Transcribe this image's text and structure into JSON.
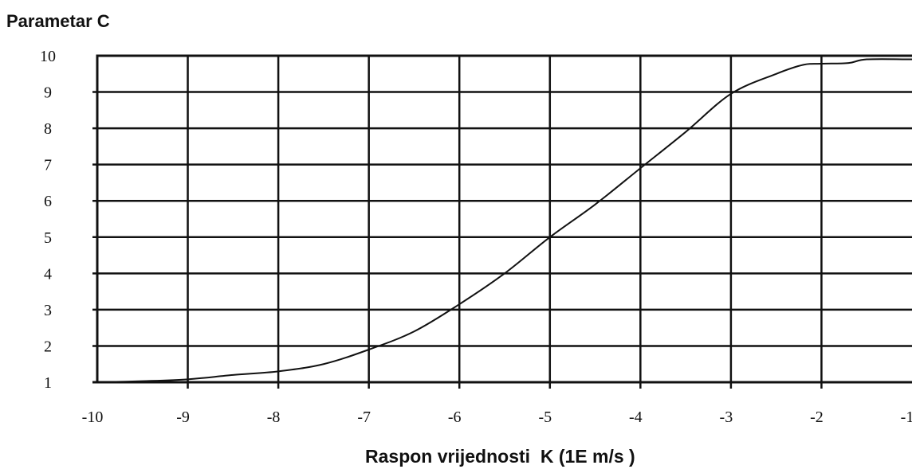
{
  "chart_data": {
    "type": "line",
    "ylabel": "Parametar C",
    "xlabel": "Raspon vrijednosti  K (1E m/s )",
    "xlim": [
      -10,
      -1
    ],
    "ylim": [
      1,
      10
    ],
    "x_ticks": [
      -10,
      -9,
      -8,
      -7,
      -6,
      -5,
      -4,
      -3,
      -2,
      -1
    ],
    "y_ticks": [
      1,
      2,
      3,
      4,
      5,
      6,
      7,
      8,
      9,
      10
    ],
    "grid": true,
    "series": [
      {
        "color": "#111111",
        "points": [
          [
            -10,
            1.0
          ],
          [
            -9.5,
            1.03
          ],
          [
            -9,
            1.08
          ],
          [
            -8.5,
            1.2
          ],
          [
            -8,
            1.3
          ],
          [
            -7.5,
            1.5
          ],
          [
            -7,
            1.9
          ],
          [
            -6.5,
            2.4
          ],
          [
            -6,
            3.15
          ],
          [
            -5.5,
            4.0
          ],
          [
            -5,
            5.0
          ],
          [
            -4.5,
            5.9
          ],
          [
            -4,
            6.9
          ],
          [
            -3.5,
            7.9
          ],
          [
            -3,
            8.95
          ],
          [
            -2.5,
            9.5
          ],
          [
            -2.2,
            9.75
          ],
          [
            -2,
            9.78
          ],
          [
            -1.7,
            9.8
          ],
          [
            -1.5,
            9.9
          ],
          [
            -1,
            9.9
          ]
        ]
      }
    ]
  }
}
